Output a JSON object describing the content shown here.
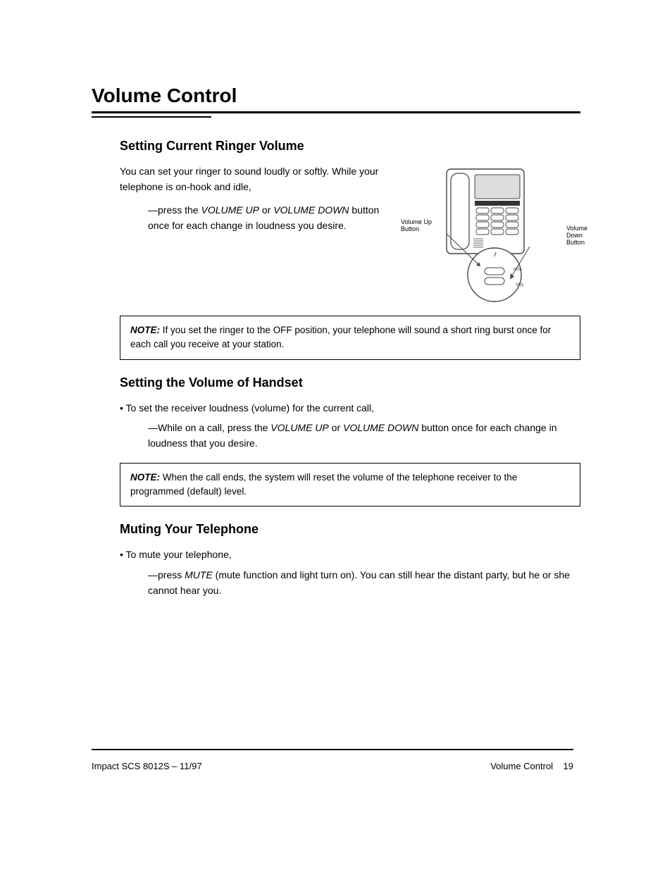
{
  "section": {
    "title": "Volume Control",
    "subsections": {
      "ringer": {
        "heading": "Setting Current Ringer Volume",
        "body1_html": "You can set your ringer to sound loudly or softly. While your telephone is on-hook and idle,",
        "body2_html": "—press the <em class=\"it\">VOLUME UP</em> or <em class=\"it\">VOLUME DOWN</em> button once for each change in loudness you desire.",
        "note_html": "<span class=\"notelead\">NOTE:</span> If you set the ringer to the OFF position, your telephone will sound a short ring burst once for each call you receive at your station."
      },
      "handset": {
        "heading": "Setting the Volume of Handset",
        "bullet_lead": "• To set the receiver loudness (volume) for the current call,",
        "body_html": "—While on a call, press the <span class=\"nowrap\"><em class=\"it\">VOLUME UP</em></span> or <em class=\"it\">VOLUME DOWN</em> button once for each change in loudness that you desire.",
        "note_html": "<span class=\"notelead\">NOTE:</span> When the call ends, the system will reset the volume of the telephone receiver to the programmed (default) level."
      },
      "mute": {
        "heading": "Muting Your Telephone",
        "bullet_lead": "• To mute your telephone,",
        "body_html": "—press <em class=\"it\">MUTE</em> (mute function and light turn on). You can still hear the distant party, but he or she cannot hear you."
      }
    }
  },
  "figure": {
    "labels": {
      "volume_up": "Volume Up\nButton",
      "volume_down": "Volume\nDown\nButton"
    },
    "colors": {
      "stroke": "#444444",
      "screen_fill": "#dddddd",
      "body_fill": "#ffffff"
    }
  },
  "footer": {
    "left": "Impact SCS 8012S – 11/97",
    "right_label": "Volume Control",
    "right_page": "19"
  }
}
